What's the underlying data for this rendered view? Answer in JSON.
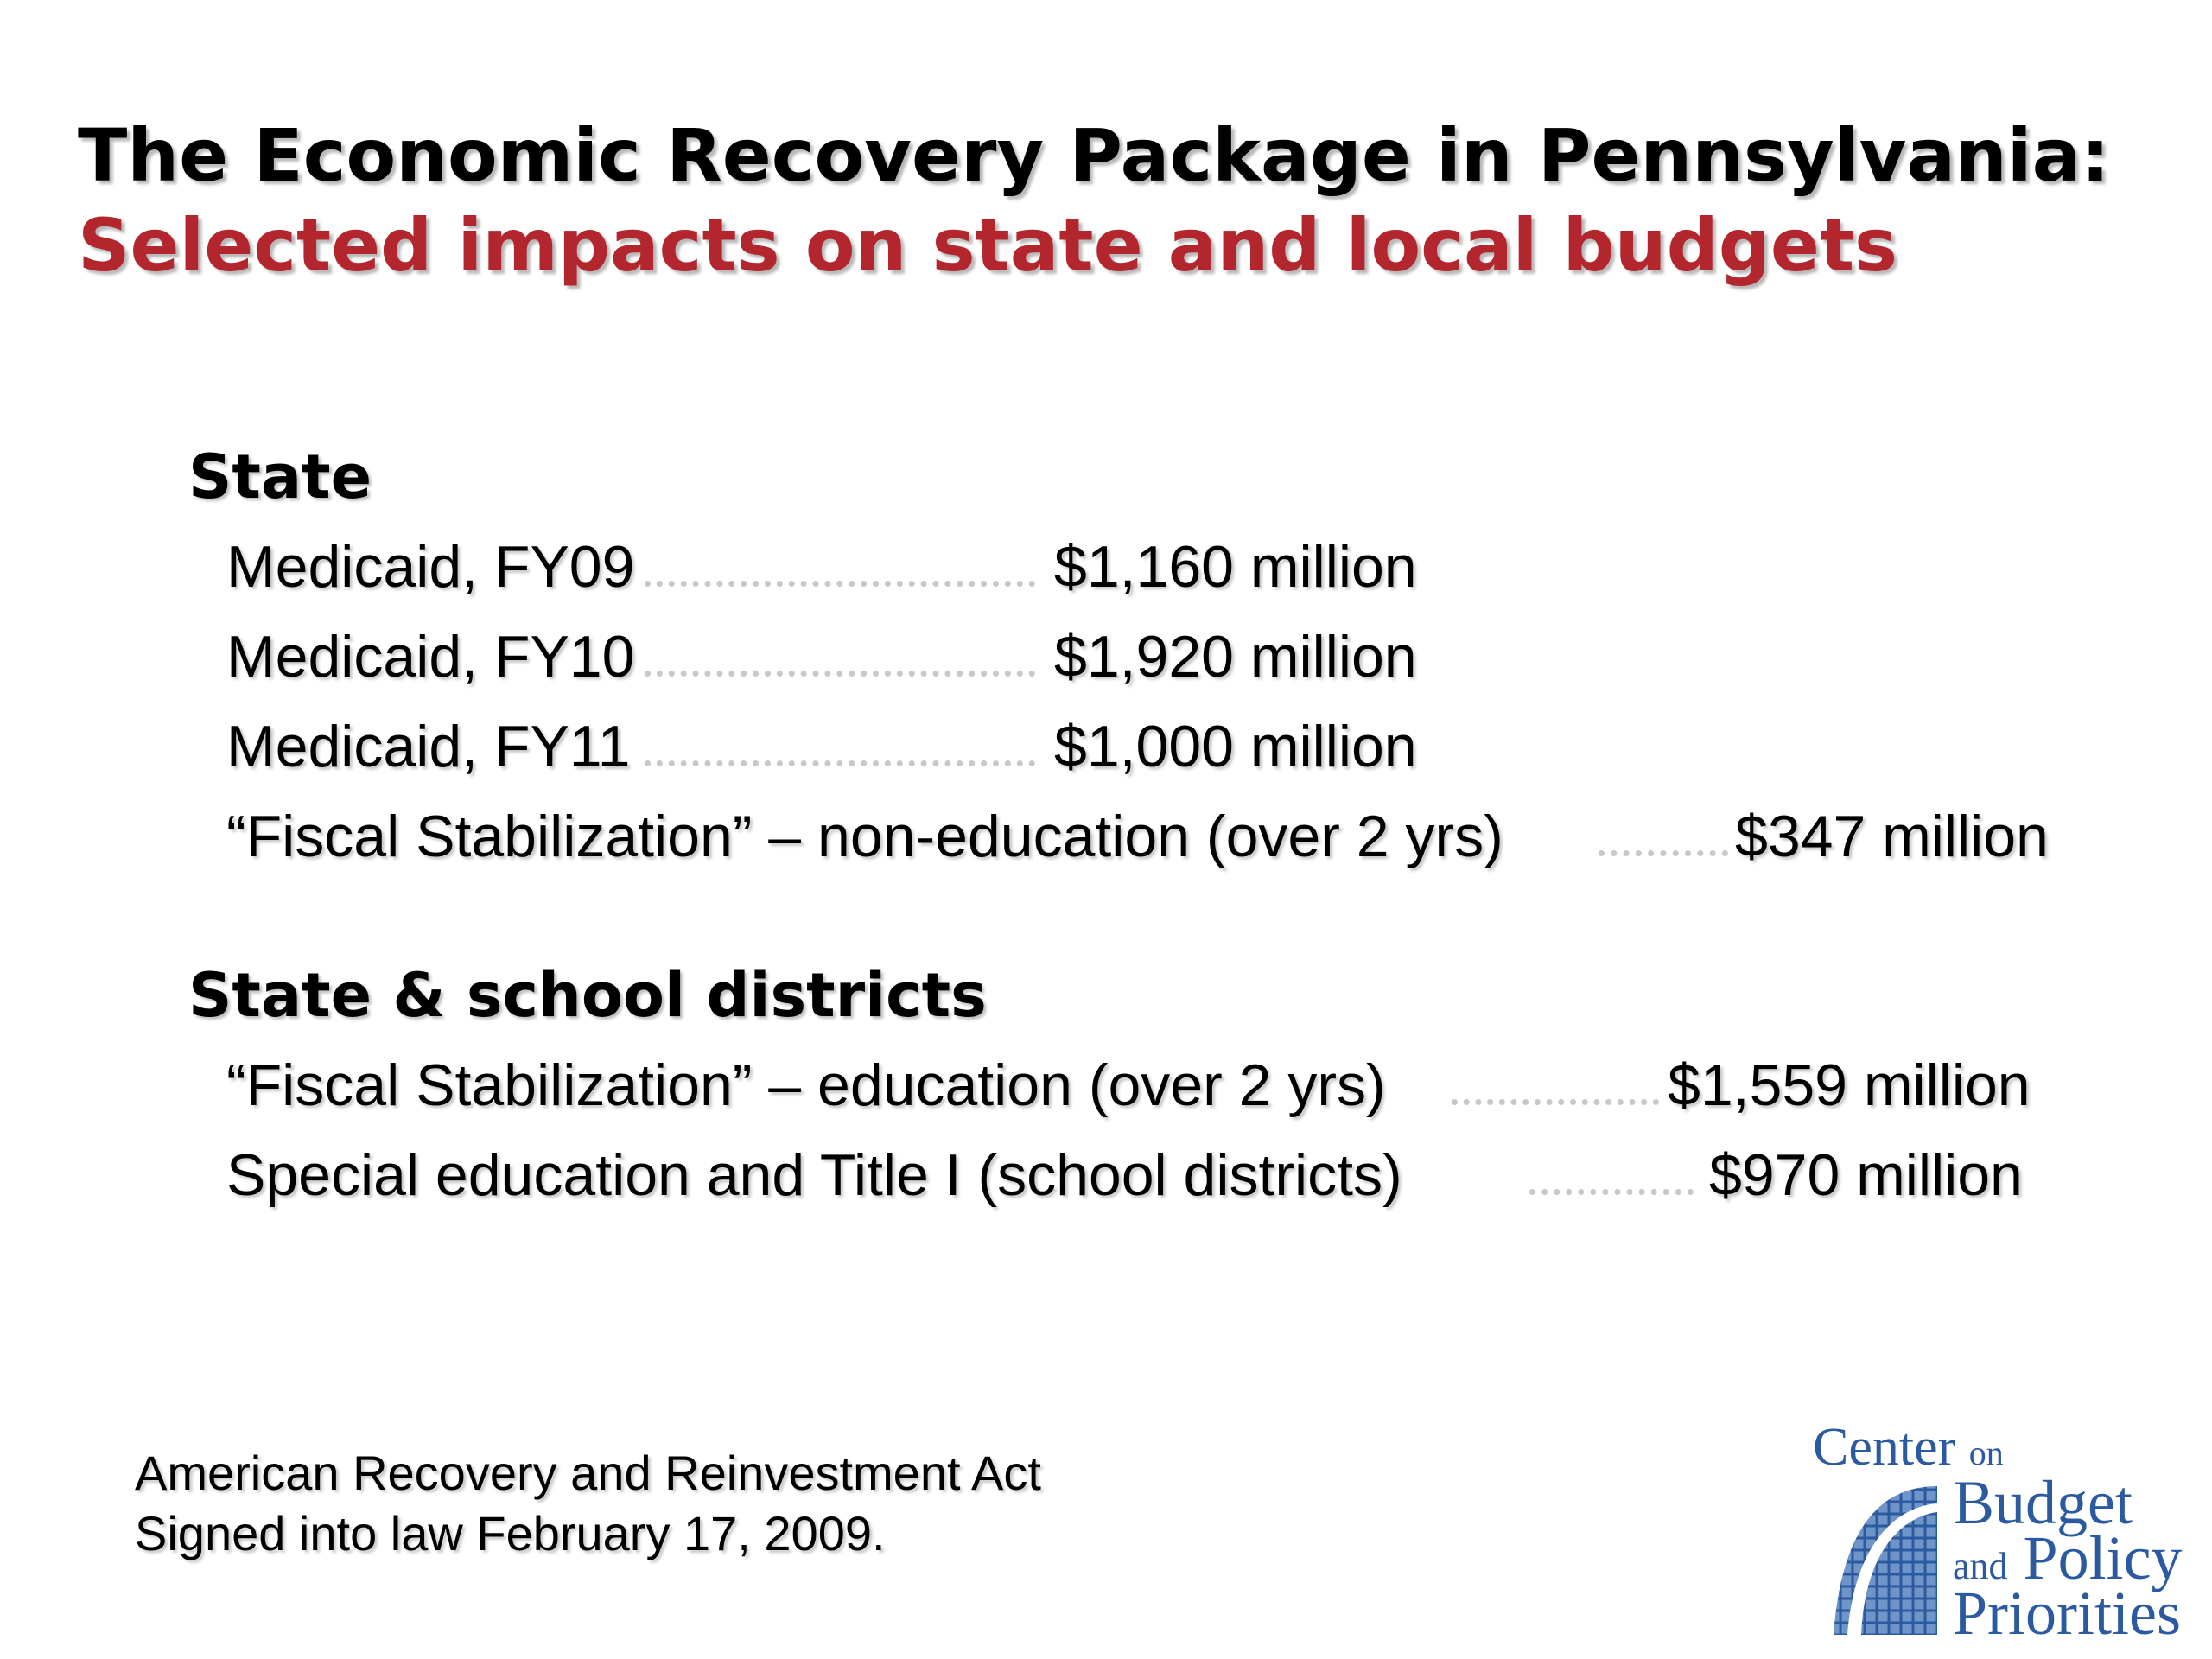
{
  "title": {
    "main": "The Economic Recovery Package in Pennsylvania:",
    "subtitle": "Selected impacts on state and local budgets"
  },
  "sections": [
    {
      "heading": "State",
      "rows": [
        {
          "label": "Medicaid, FY09",
          "value": "$1,160 million"
        },
        {
          "label": "Medicaid, FY10",
          "value": "$1,920 million"
        },
        {
          "label": "Medicaid, FY11",
          "value": "$1,000 million"
        },
        {
          "label": "“Fiscal Stabilization” – non-education (over 2 yrs)",
          "value": "$347 million"
        }
      ]
    },
    {
      "heading": "State & school districts",
      "rows": [
        {
          "label": "“Fiscal Stabilization” – education (over 2 yrs)",
          "value": "$1,559 million"
        },
        {
          "label": "Special education and Title I (school districts)",
          "value": "$970 million"
        }
      ]
    }
  ],
  "footer": {
    "line1": "American Recovery and Reinvestment Act",
    "line2": "Signed into law February 17, 2009."
  },
  "logo": {
    "center": "Center",
    "on": "on",
    "budget": "Budget",
    "and": "and",
    "policy": "Policy",
    "priorities": "Priorities",
    "color": "#2c5aa0"
  },
  "colors": {
    "title": "#000000",
    "subtitle": "#b3262e",
    "leader_dots": "#c8c8c8"
  }
}
